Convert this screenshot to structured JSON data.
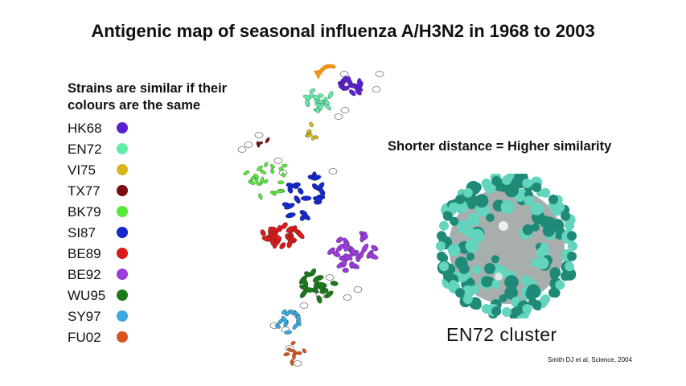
{
  "title": "Antigenic map of seasonal influenza A/H3N2 in 1968 to 2003",
  "legend": {
    "heading": "Strains are similar if their colours are the same",
    "items": [
      {
        "label": "HK68",
        "color": "#5b1fd6"
      },
      {
        "label": "EN72",
        "color": "#62eca8"
      },
      {
        "label": "VI75",
        "color": "#d9b51c"
      },
      {
        "label": "TX77",
        "color": "#7a0c10"
      },
      {
        "label": "BK79",
        "color": "#56e83a"
      },
      {
        "label": "SI87",
        "color": "#1428cc"
      },
      {
        "label": "BE89",
        "color": "#d81a1a"
      },
      {
        "label": "BE92",
        "color": "#9a3bdc"
      },
      {
        "label": "WU95",
        "color": "#1a7a1a"
      },
      {
        "label": "SY97",
        "color": "#3aaae0"
      },
      {
        "label": "FU02",
        "color": "#d9531c"
      }
    ]
  },
  "annotation": "Shorter distance = Higher similarity",
  "virus_label": "EN72 cluster",
  "citation": "Smith DJ et al, Science, 2004",
  "colors": {
    "arrow": "#f0921e",
    "virus_dark": "#1f8a78",
    "virus_light": "#63d4bd",
    "virus_core": "#a8aeab"
  }
}
